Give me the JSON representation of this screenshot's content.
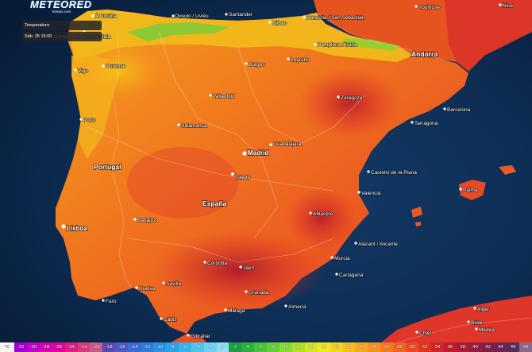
{
  "brand": {
    "name": "METEORED",
    "tagline": "tiempo.com"
  },
  "layer": {
    "label": "Temperatura"
  },
  "timestamp": {
    "label": "Sáb. 25 15:00"
  },
  "countries": [
    {
      "id": "portugal",
      "name": "Portugal"
    },
    {
      "id": "espana",
      "name": "España"
    },
    {
      "id": "andorra",
      "name": "Andorra"
    }
  ],
  "capitals": [
    {
      "id": "madrid",
      "name": "Madrid"
    },
    {
      "id": "lisboa",
      "name": "Lisboa"
    }
  ],
  "cities": [
    {
      "id": "a-coruna",
      "name": "A Coruña"
    },
    {
      "id": "oviedo",
      "name": "Oviedo / Uviéu"
    },
    {
      "id": "santander",
      "name": "Santander"
    },
    {
      "id": "bilbao",
      "name": "Bilbao"
    },
    {
      "id": "donostia",
      "name": "Donostia / San Sebastián"
    },
    {
      "id": "santiago",
      "name": "Santiago de Compostela"
    },
    {
      "id": "ourense",
      "name": "Ourense"
    },
    {
      "id": "vigo",
      "name": "Vigo"
    },
    {
      "id": "burgos",
      "name": "Burgos"
    },
    {
      "id": "logrono",
      "name": "Logroño"
    },
    {
      "id": "pamplona",
      "name": "Pamplona / Iruña"
    },
    {
      "id": "toulouse",
      "name": "Toulouse"
    },
    {
      "id": "nice",
      "name": "Nice"
    },
    {
      "id": "valladolid",
      "name": "Valladolid"
    },
    {
      "id": "porto",
      "name": "Porto"
    },
    {
      "id": "zaragoza",
      "name": "Zaragoza"
    },
    {
      "id": "barcelona",
      "name": "Barcelona"
    },
    {
      "id": "tarragona",
      "name": "Tarragona"
    },
    {
      "id": "salamanca",
      "name": "Salamanca"
    },
    {
      "id": "guadalajara",
      "name": "Guadalajara"
    },
    {
      "id": "castellon",
      "name": "Castello de la Plana"
    },
    {
      "id": "toledo",
      "name": "Toledo"
    },
    {
      "id": "valencia",
      "name": "Valencia"
    },
    {
      "id": "palma",
      "name": "Palma"
    },
    {
      "id": "badajoz",
      "name": "Badajoz"
    },
    {
      "id": "albacete",
      "name": "Albacete"
    },
    {
      "id": "alicante",
      "name": "Alacant / Alicante"
    },
    {
      "id": "cordoba",
      "name": "Córdoba"
    },
    {
      "id": "jaen",
      "name": "Jaén"
    },
    {
      "id": "murcia",
      "name": "Murcia"
    },
    {
      "id": "cartagena",
      "name": "Cartagena"
    },
    {
      "id": "sevilla",
      "name": "Sevilla"
    },
    {
      "id": "granada",
      "name": "Granada"
    },
    {
      "id": "almeria",
      "name": "Almería"
    },
    {
      "id": "huelva",
      "name": "Huelva"
    },
    {
      "id": "faro",
      "name": "Faro"
    },
    {
      "id": "malaga",
      "name": "Málaga"
    },
    {
      "id": "cadiz",
      "name": "Cádiz"
    },
    {
      "id": "gibraltar",
      "name": "Gibraltar"
    },
    {
      "id": "alger",
      "name": "Alger"
    },
    {
      "id": "blida",
      "name": "Blida"
    },
    {
      "id": "medea",
      "name": "Médéa"
    },
    {
      "id": "chlef",
      "name": "Chlef"
    }
  ],
  "legend": {
    "unit": "°C",
    "stops": [
      {
        "label": "-32",
        "color": "#a400d6"
      },
      {
        "label": "-30",
        "color": "#c200c8"
      },
      {
        "label": "-28",
        "color": "#d600b4"
      },
      {
        "label": "-26",
        "color": "#e0009c"
      },
      {
        "label": "-24",
        "color": "#e01a86"
      },
      {
        "label": "-22",
        "color": "#d83a7a"
      },
      {
        "label": "-20",
        "color": "#c85a86"
      },
      {
        "label": "-18",
        "color": "#5b48b8"
      },
      {
        "label": "-16",
        "color": "#4a58c8"
      },
      {
        "label": "-14",
        "color": "#3c6ad6"
      },
      {
        "label": "-12",
        "color": "#2f7ce0"
      },
      {
        "label": "-10",
        "color": "#2a8fe6"
      },
      {
        "label": "-8",
        "color": "#2aa2ea"
      },
      {
        "label": "-6",
        "color": "#34b4ec"
      },
      {
        "label": "-4",
        "color": "#4cc4ee"
      },
      {
        "label": "-2",
        "color": "#6cd2f0"
      },
      {
        "label": "0",
        "color": "#90def2"
      },
      {
        "label": "2",
        "color": "#1e9e44"
      },
      {
        "label": "4",
        "color": "#2eb040"
      },
      {
        "label": "6",
        "color": "#46c23c"
      },
      {
        "label": "8",
        "color": "#64d034"
      },
      {
        "label": "10",
        "color": "#88da2c"
      },
      {
        "label": "12",
        "color": "#aee224"
      },
      {
        "label": "14",
        "color": "#d4e81e"
      },
      {
        "label": "16",
        "color": "#f0e81a"
      },
      {
        "label": "18",
        "color": "#f6d41a"
      },
      {
        "label": "20",
        "color": "#f8be1a"
      },
      {
        "label": "22",
        "color": "#f8a81a"
      },
      {
        "label": "24",
        "color": "#f8921c"
      },
      {
        "label": "26",
        "color": "#f67a1e"
      },
      {
        "label": "28",
        "color": "#f26220"
      },
      {
        "label": "30",
        "color": "#ec4a22"
      },
      {
        "label": "32",
        "color": "#e23424"
      },
      {
        "label": "34",
        "color": "#d42226"
      },
      {
        "label": "36",
        "color": "#c21a2a"
      },
      {
        "label": "38",
        "color": "#ac1a34"
      },
      {
        "label": "40",
        "color": "#961c3e"
      },
      {
        "label": "42",
        "color": "#801e48"
      },
      {
        "label": "44",
        "color": "#6c2452"
      },
      {
        "label": "46",
        "color": "#5a2a5c"
      },
      {
        "label": "48",
        "color": "#8a6a88"
      }
    ]
  }
}
